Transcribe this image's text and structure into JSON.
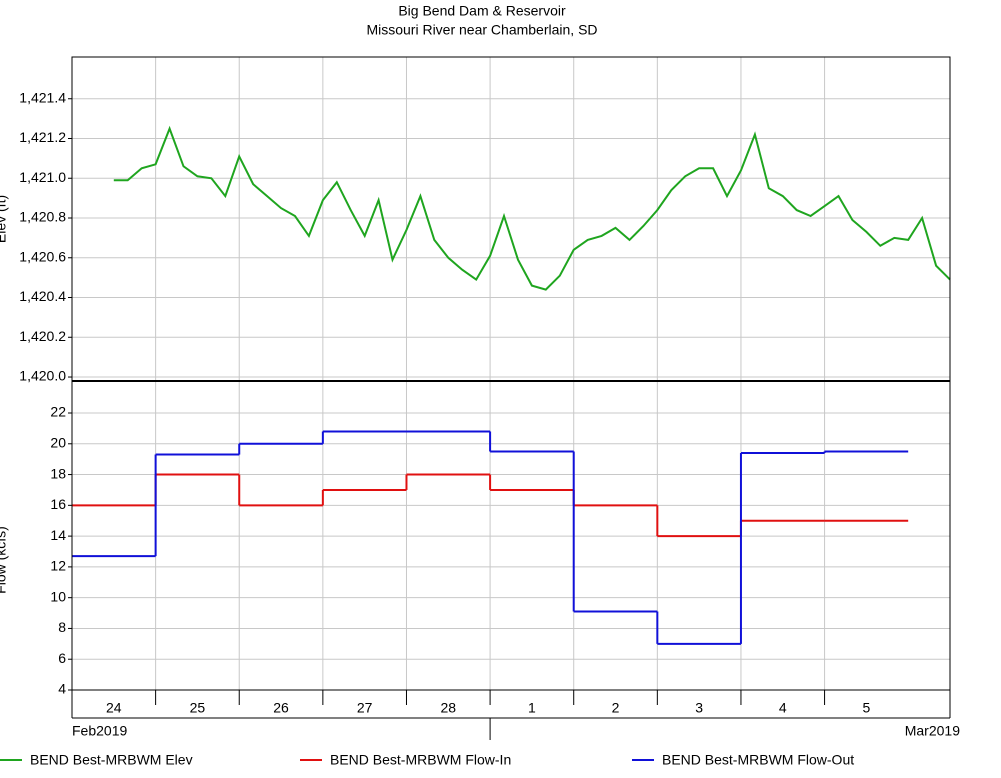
{
  "chart_data": [
    {
      "type": "line",
      "title": "Big Bend Dam & Reservoir",
      "subtitle": "Missouri River near Chamberlain, SD",
      "y_label": "Elev (ft)",
      "xlim": [
        "2019-02-24T00:00",
        "2019-03-06T12:00"
      ],
      "ylim": [
        1419.98,
        1421.61
      ],
      "yticks": [
        {
          "value": 1420.0,
          "label": "1,420.0"
        },
        {
          "value": 1420.2,
          "label": "1,420.2"
        },
        {
          "value": 1420.4,
          "label": "1,420.4"
        },
        {
          "value": 1420.6,
          "label": "1,420.6"
        },
        {
          "value": 1420.8,
          "label": "1,420.8"
        },
        {
          "value": 1421.0,
          "label": "1,421.0"
        },
        {
          "value": 1421.2,
          "label": "1,421.2"
        },
        {
          "value": 1421.4,
          "label": "1,421.4"
        }
      ],
      "grid": true,
      "x": [
        "2019-02-24T12:00",
        "2019-02-24T16:00",
        "2019-02-24T20:00",
        "2019-02-25T00:00",
        "2019-02-25T04:00",
        "2019-02-25T08:00",
        "2019-02-25T12:00",
        "2019-02-25T16:00",
        "2019-02-25T20:00",
        "2019-02-26T00:00",
        "2019-02-26T04:00",
        "2019-02-26T08:00",
        "2019-02-26T12:00",
        "2019-02-26T16:00",
        "2019-02-26T20:00",
        "2019-02-27T00:00",
        "2019-02-27T04:00",
        "2019-02-27T08:00",
        "2019-02-27T12:00",
        "2019-02-27T16:00",
        "2019-02-27T20:00",
        "2019-02-28T00:00",
        "2019-02-28T04:00",
        "2019-02-28T08:00",
        "2019-02-28T12:00",
        "2019-02-28T16:00",
        "2019-02-28T20:00",
        "2019-03-01T00:00",
        "2019-03-01T04:00",
        "2019-03-01T08:00",
        "2019-03-01T12:00",
        "2019-03-01T16:00",
        "2019-03-01T20:00",
        "2019-03-02T00:00",
        "2019-03-02T04:00",
        "2019-03-02T08:00",
        "2019-03-02T12:00",
        "2019-03-02T16:00",
        "2019-03-02T20:00",
        "2019-03-03T00:00",
        "2019-03-03T04:00",
        "2019-03-03T08:00",
        "2019-03-03T12:00",
        "2019-03-03T16:00",
        "2019-03-03T20:00",
        "2019-03-04T00:00",
        "2019-03-04T04:00",
        "2019-03-04T08:00",
        "2019-03-04T12:00",
        "2019-03-04T16:00",
        "2019-03-04T20:00",
        "2019-03-05T00:00",
        "2019-03-05T04:00",
        "2019-03-05T08:00",
        "2019-03-05T12:00",
        "2019-03-05T16:00",
        "2019-03-05T20:00",
        "2019-03-06T00:00",
        "2019-03-06T04:00",
        "2019-03-06T08:00",
        "2019-03-06T12:00"
      ],
      "series": [
        {
          "name": "BEND Best-MRBWM Elev",
          "color": "#1fa51f",
          "values": [
            1420.99,
            1420.99,
            1421.05,
            1421.07,
            1421.25,
            1421.06,
            1421.01,
            1421.0,
            1420.91,
            1421.11,
            1420.97,
            1420.91,
            1420.85,
            1420.81,
            1420.71,
            1420.89,
            1420.98,
            1420.84,
            1420.71,
            1420.89,
            1420.59,
            1420.74,
            1420.91,
            1420.69,
            1420.6,
            1420.54,
            1420.49,
            1420.61,
            1420.81,
            1420.59,
            1420.46,
            1420.44,
            1420.51,
            1420.64,
            1420.69,
            1420.71,
            1420.75,
            1420.69,
            1420.76,
            1420.84,
            1420.94,
            1421.01,
            1421.05,
            1421.05,
            1420.91,
            1421.04,
            1421.22,
            1420.95,
            1420.91,
            1420.84,
            1420.81,
            1420.86,
            1420.91,
            1420.79,
            1420.73,
            1420.66,
            1420.7,
            1420.69,
            1420.8,
            1420.56,
            1420.49
          ]
        }
      ]
    },
    {
      "type": "step",
      "y_label": "Flow (kcfs)",
      "xlim": [
        "2019-02-24T00:00",
        "2019-03-06T12:00"
      ],
      "ylim": [
        4,
        24.08
      ],
      "yticks": [
        4,
        6,
        8,
        10,
        12,
        14,
        16,
        18,
        20,
        22
      ],
      "grid": true,
      "xticks": [
        {
          "value": "2019-02-24T00:00",
          "label": "24"
        },
        {
          "value": "2019-02-25T00:00",
          "label": "25"
        },
        {
          "value": "2019-02-26T00:00",
          "label": "26"
        },
        {
          "value": "2019-02-27T00:00",
          "label": "27"
        },
        {
          "value": "2019-02-28T00:00",
          "label": "28"
        },
        {
          "value": "2019-03-01T00:00",
          "label": "1"
        },
        {
          "value": "2019-03-02T00:00",
          "label": "2"
        },
        {
          "value": "2019-03-03T00:00",
          "label": "3"
        },
        {
          "value": "2019-03-04T00:00",
          "label": "4"
        },
        {
          "value": "2019-03-05T00:00",
          "label": "5"
        }
      ],
      "month_labels": [
        {
          "value": "2019-02-24T00:00",
          "label": "Feb2019"
        },
        {
          "value": "2019-03-01T00:00",
          "label": "Mar2019"
        }
      ],
      "x": [
        "2019-02-24T00:00",
        "2019-02-25T00:00",
        "2019-02-26T00:00",
        "2019-02-27T00:00",
        "2019-02-28T00:00",
        "2019-03-01T00:00",
        "2019-03-02T00:00",
        "2019-03-03T00:00",
        "2019-03-04T00:00",
        "2019-03-05T00:00"
      ],
      "series": [
        {
          "name": "BEND Best-MRBWM Flow-In",
          "color": "#e01010",
          "values": [
            16,
            18,
            16,
            17,
            18,
            17,
            16,
            14,
            15,
            15
          ]
        },
        {
          "name": "BEND Best-MRBWM Flow-Out",
          "color": "#1010d8",
          "values": [
            12.7,
            19.3,
            20.0,
            20.8,
            20.8,
            19.5,
            9.1,
            7.0,
            19.4,
            19.5
          ]
        }
      ]
    }
  ]
}
